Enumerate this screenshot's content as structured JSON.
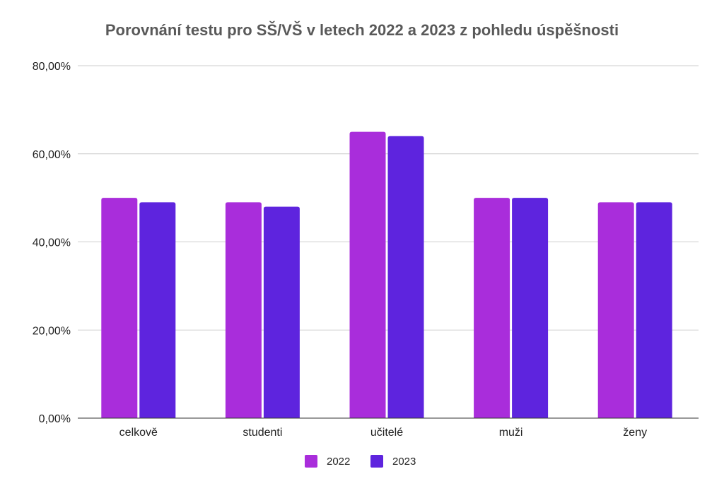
{
  "chart_data": {
    "type": "bar",
    "title": "Porovnání testu pro SŠ/VŠ v letech 2022 a 2023 z pohledu úspěšnosti",
    "categories": [
      "celkově",
      "studenti",
      "učitelé",
      "muži",
      "ženy"
    ],
    "series": [
      {
        "name": "2022",
        "values": [
          50,
          49,
          65,
          50,
          49
        ],
        "color": "#a92ddb"
      },
      {
        "name": "2023",
        "values": [
          49,
          48,
          64,
          50,
          49
        ],
        "color": "#5e24de"
      }
    ],
    "ylim": [
      0,
      80
    ],
    "yticks": [
      0,
      20,
      40,
      60,
      80
    ],
    "ytick_labels": [
      "0,00%",
      "20,00%",
      "40,00%",
      "60,00%",
      "80,00%"
    ],
    "xlabel": "",
    "ylabel": "",
    "grid": true,
    "legend_position": "bottom"
  }
}
